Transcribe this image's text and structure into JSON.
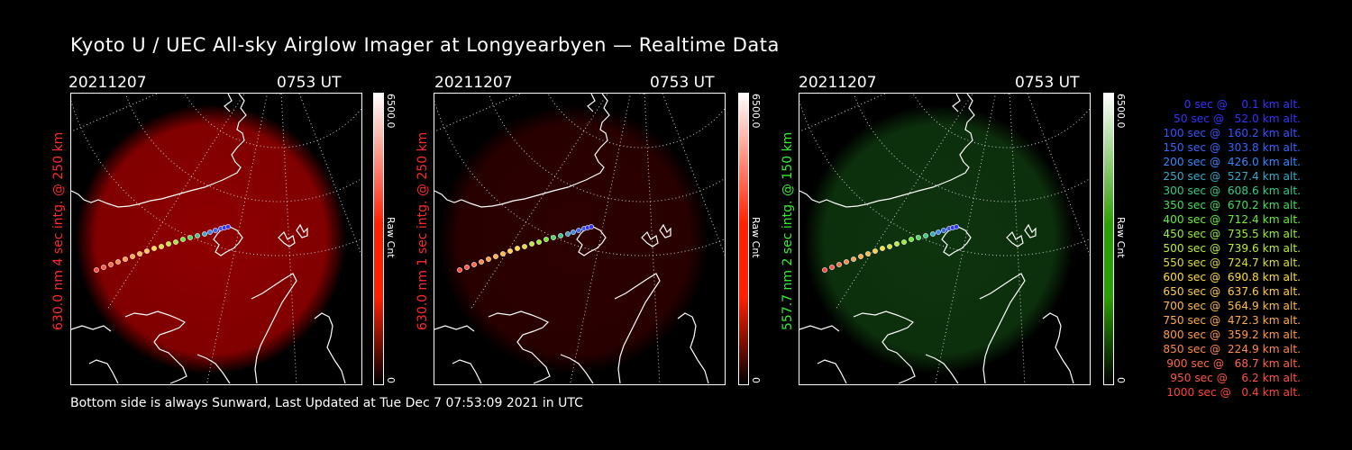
{
  "title": "Kyoto U / UEC All-sky Airglow Imager at Longyearbyen — Realtime Data",
  "footer": "Bottom side is always Sunward, Last Updated at Tue Dec  7 07:53:09 2021 in UTC",
  "panels": [
    {
      "date": "20211207",
      "time": "0753 UT",
      "side_label": "630.0 nm 4 sec intg. @ 250 km",
      "label_color": "#ff2a2a",
      "glow_color": "#a80000",
      "glow_opacity": 0.85,
      "cbar_max": "6500.0",
      "cbar_unit": "Raw Cnt",
      "cbar_min": "0",
      "cbar_color": "#ff2000"
    },
    {
      "date": "20211207",
      "time": "0753 UT",
      "side_label": "630.0 nm 1 sec intg. @ 250 km",
      "label_color": "#ff2a2a",
      "glow_color": "#3c0000",
      "glow_opacity": 0.75,
      "cbar_max": "6500.0",
      "cbar_unit": "Raw Cnt",
      "cbar_min": "0",
      "cbar_color": "#ff2000"
    },
    {
      "date": "20211207",
      "time": "0753 UT",
      "side_label": "557.7 nm 2 sec intg. @ 150 km",
      "label_color": "#33ee33",
      "glow_color": "#0f3a0f",
      "glow_opacity": 0.9,
      "cbar_max": "6500.0",
      "cbar_unit": "Raw Cnt",
      "cbar_min": "0",
      "cbar_color": "#2aa000"
    }
  ],
  "legend": [
    {
      "text": "  0 sec @    0.1 km alt.",
      "color": "#3333ff"
    },
    {
      "text": " 50 sec @   52.0 km alt.",
      "color": "#3333ff"
    },
    {
      "text": "100 sec @  160.2 km alt.",
      "color": "#3355ff"
    },
    {
      "text": "150 sec @  303.8 km alt.",
      "color": "#3366ff"
    },
    {
      "text": "200 sec @  426.0 km alt.",
      "color": "#3388ff"
    },
    {
      "text": "250 sec @  527.4 km alt.",
      "color": "#33aacc"
    },
    {
      "text": "300 sec @  608.6 km alt.",
      "color": "#33cc88"
    },
    {
      "text": "350 sec @  670.2 km alt.",
      "color": "#44dd55"
    },
    {
      "text": "400 sec @  712.4 km alt.",
      "color": "#66ee33"
    },
    {
      "text": "450 sec @  735.5 km alt.",
      "color": "#99ee33"
    },
    {
      "text": "500 sec @  739.6 km alt.",
      "color": "#bbee33"
    },
    {
      "text": "550 sec @  724.7 km alt.",
      "color": "#dddd33"
    },
    {
      "text": "600 sec @  690.8 km alt.",
      "color": "#ffdd33"
    },
    {
      "text": "650 sec @  637.6 km alt.",
      "color": "#ffcc44"
    },
    {
      "text": "700 sec @  564.9 km alt.",
      "color": "#ffbb44"
    },
    {
      "text": "750 sec @  472.3 km alt.",
      "color": "#ffaa44"
    },
    {
      "text": "800 sec @  359.2 km alt.",
      "color": "#ff9944"
    },
    {
      "text": "850 sec @  224.9 km alt.",
      "color": "#ff8844"
    },
    {
      "text": "900 sec @   68.7 km alt.",
      "color": "#ff6644"
    },
    {
      "text": "950 sec @    6.2 km alt.",
      "color": "#ff5544"
    },
    {
      "text": "1000 sec @   0.4 km alt.",
      "color": "#ff4433"
    }
  ]
}
